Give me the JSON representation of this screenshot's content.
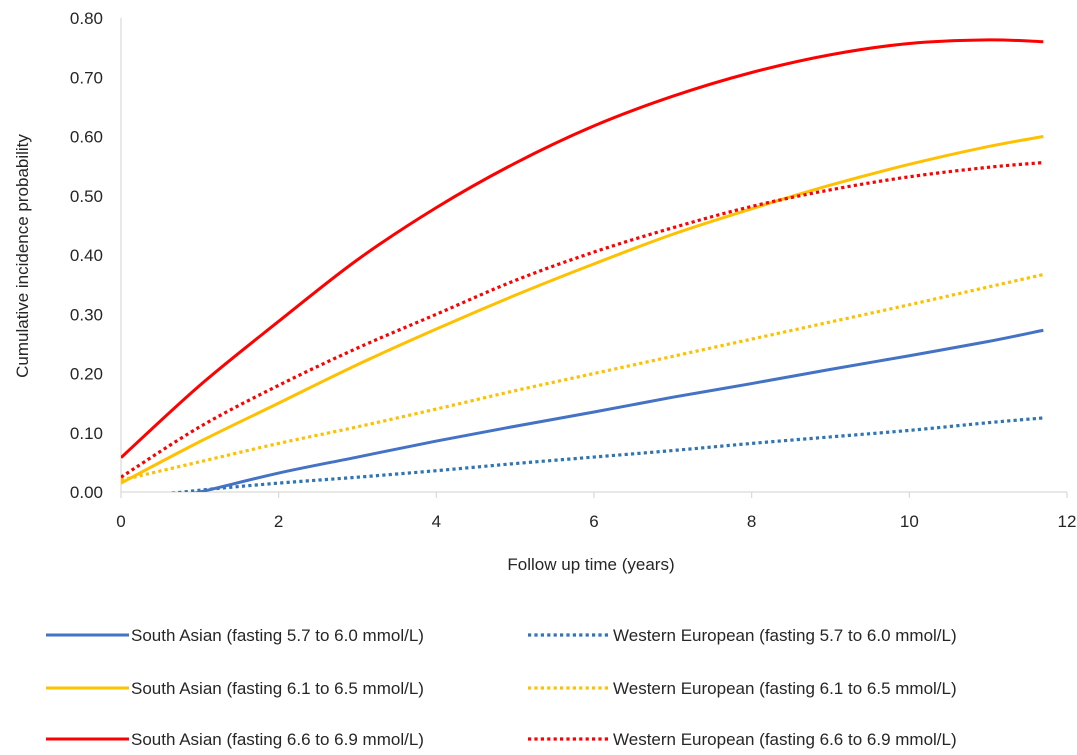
{
  "chart_data": {
    "type": "line",
    "title": "",
    "xlabel": "Follow up time (years)",
    "ylabel": "Cumulative incidence probability",
    "xlim": [
      0,
      12
    ],
    "ylim": [
      0,
      0.8
    ],
    "x_ticks": [
      0,
      2,
      4,
      6,
      8,
      10,
      12
    ],
    "y_ticks": [
      0.0,
      0.1,
      0.2,
      0.3,
      0.4,
      0.5,
      0.6,
      0.7,
      0.8
    ],
    "x_tick_labels": [
      "0",
      "2",
      "4",
      "6",
      "8",
      "10",
      "12"
    ],
    "y_tick_labels": [
      "0.00",
      "0.10",
      "0.20",
      "0.30",
      "0.40",
      "0.50",
      "0.60",
      "0.70",
      "0.80"
    ],
    "grid": false,
    "legend_position": "bottom",
    "x": [
      0,
      1,
      2,
      3,
      4,
      5,
      6,
      7,
      8,
      9,
      10,
      11,
      11.7
    ],
    "series": [
      {
        "name": "South Asian (fasting 5.7 to 6.0 mmol/L)",
        "color": "#4472c4",
        "style": "solid",
        "values": [
          -0.03,
          0.0,
          0.032,
          0.059,
          0.086,
          0.111,
          0.135,
          0.16,
          0.183,
          0.207,
          0.23,
          0.254,
          0.273
        ]
      },
      {
        "name": "Western European (fasting 5.7 to 6.0 mmol/L)",
        "color": "#2e75b6",
        "style": "dotted",
        "values": [
          -0.012,
          0.003,
          0.015,
          0.025,
          0.036,
          0.048,
          0.059,
          0.07,
          0.082,
          0.093,
          0.104,
          0.117,
          0.125
        ]
      },
      {
        "name": "South Asian (fasting 6.1 to 6.5 mmol/L)",
        "color": "#ffc000",
        "style": "solid",
        "values": [
          0.015,
          0.085,
          0.15,
          0.215,
          0.275,
          0.332,
          0.385,
          0.435,
          0.478,
          0.518,
          0.553,
          0.583,
          0.6
        ]
      },
      {
        "name": "Western European (fasting 6.1 to 6.5 mmol/L)",
        "color": "#ffc000",
        "style": "dotted",
        "values": [
          0.02,
          0.051,
          0.082,
          0.11,
          0.14,
          0.171,
          0.2,
          0.229,
          0.258,
          0.287,
          0.316,
          0.346,
          0.367
        ]
      },
      {
        "name": "South Asian (fasting 6.6 to 6.9 mmol/L)",
        "color": "#ff0000",
        "style": "solid",
        "values": [
          0.058,
          0.18,
          0.288,
          0.392,
          0.48,
          0.555,
          0.618,
          0.668,
          0.708,
          0.738,
          0.757,
          0.763,
          0.76
        ]
      },
      {
        "name": "Western European (fasting 6.6 to 6.9 mmol/L)",
        "color": "#ff0000",
        "style": "dotted",
        "values": [
          0.025,
          0.11,
          0.18,
          0.243,
          0.3,
          0.357,
          0.405,
          0.446,
          0.482,
          0.51,
          0.532,
          0.548,
          0.556
        ]
      }
    ]
  }
}
